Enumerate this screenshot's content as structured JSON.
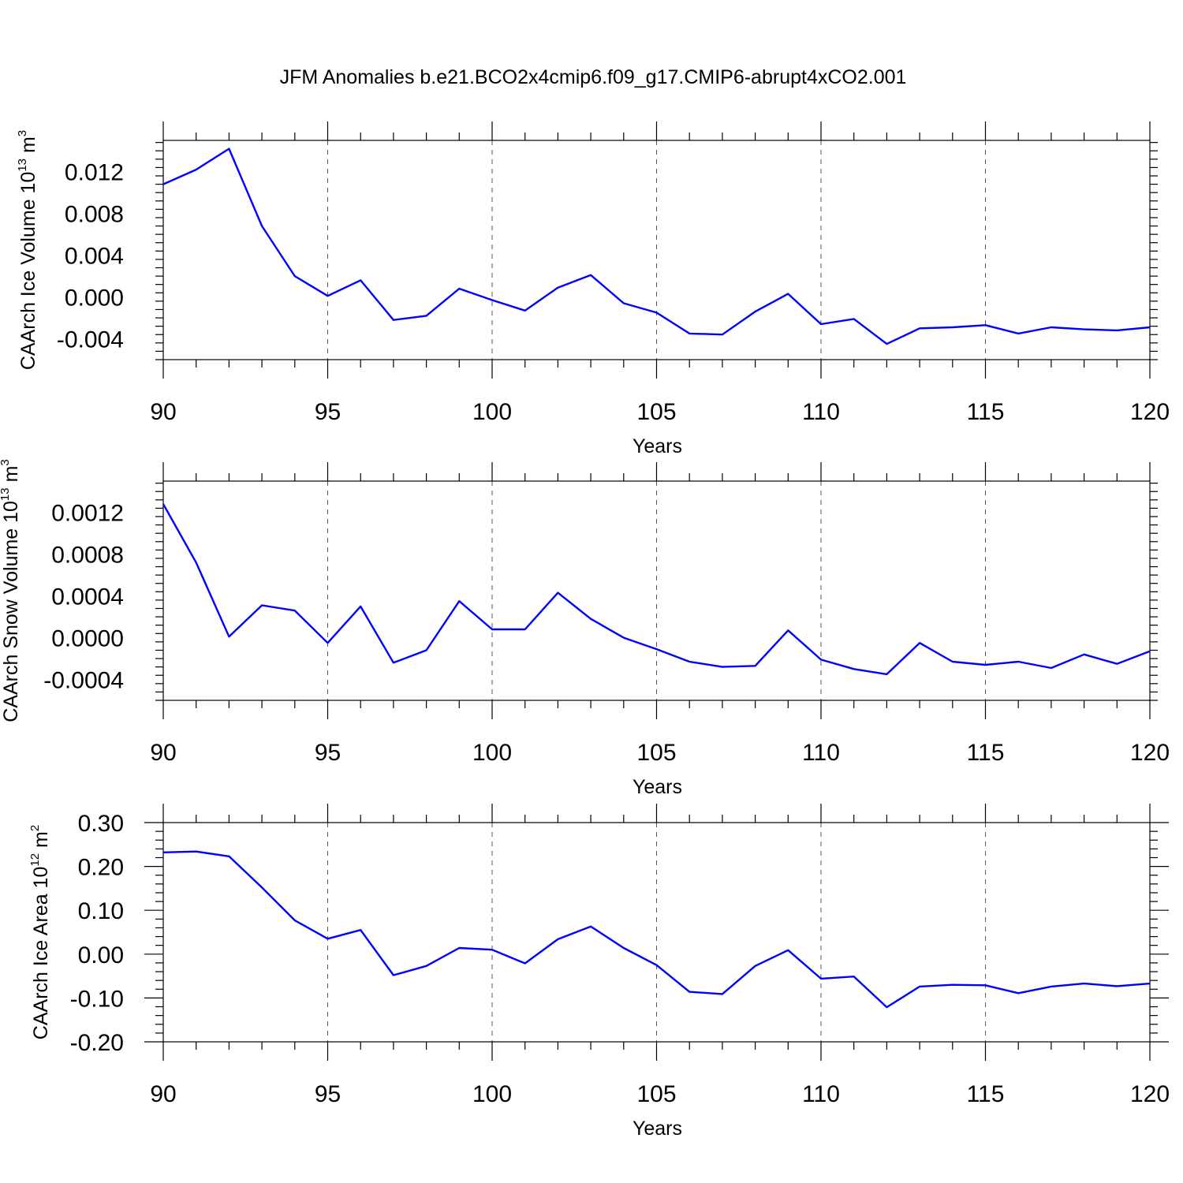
{
  "title": "JFM Anomalies b.e21.BCO2x4cmip6.f09_g17.CMIP6-abrupt4xCO2.001",
  "chart_data": [
    {
      "type": "line",
      "ylabel": "CAArch Ice Volume",
      "ylabel_unit_base": "10",
      "ylabel_unit_exp": "13",
      "ylabel_unit_suffix": "m",
      "ylabel_unit_suffix_exp": "3",
      "xlabel": "Years",
      "xlim": [
        90,
        120
      ],
      "ylim": [
        -0.006,
        0.015
      ],
      "yticks": [
        -0.004,
        0.0,
        0.004,
        0.008,
        0.012
      ],
      "ytick_labels": [
        "-0.004",
        "0.000",
        "0.004",
        "0.008",
        "0.012"
      ],
      "xticks": [
        90,
        95,
        100,
        105,
        110,
        115,
        120
      ],
      "xtick_labels": [
        "90",
        "95",
        "100",
        "105",
        "110",
        "115",
        "120"
      ],
      "grid": "vertical-dashed",
      "x": [
        90,
        91,
        92,
        93,
        94,
        95,
        96,
        97,
        98,
        99,
        100,
        101,
        102,
        103,
        104,
        105,
        106,
        107,
        108,
        109,
        110,
        111,
        112,
        113,
        114,
        115,
        116,
        117,
        118,
        119,
        120
      ],
      "values": [
        0.0108,
        0.0122,
        0.0142,
        0.0068,
        0.002,
        0.0001,
        0.0016,
        -0.0022,
        -0.0018,
        0.0008,
        -0.0003,
        -0.0013,
        0.0009,
        0.0021,
        -0.0006,
        -0.0015,
        -0.0035,
        -0.0036,
        -0.0014,
        0.0003,
        -0.0026,
        -0.0021,
        -0.0045,
        -0.003,
        -0.0029,
        -0.0027,
        -0.0035,
        -0.0029,
        -0.0031,
        -0.0032,
        -0.0029
      ]
    },
    {
      "type": "line",
      "ylabel": "CAArch Snow Volume",
      "ylabel_unit_base": "10",
      "ylabel_unit_exp": "13",
      "ylabel_unit_suffix": "m",
      "ylabel_unit_suffix_exp": "3",
      "xlabel": "Years",
      "xlim": [
        90,
        120
      ],
      "ylim": [
        -0.0006,
        0.0015
      ],
      "yticks": [
        -0.0004,
        0.0,
        0.0004,
        0.0008,
        0.0012
      ],
      "ytick_labels": [
        "-0.0004",
        "0.0000",
        "0.0004",
        "0.0008",
        "0.0012"
      ],
      "xticks": [
        90,
        95,
        100,
        105,
        110,
        115,
        120
      ],
      "xtick_labels": [
        "90",
        "95",
        "100",
        "105",
        "110",
        "115",
        "120"
      ],
      "grid": "vertical-dashed",
      "x": [
        90,
        91,
        92,
        93,
        94,
        95,
        96,
        97,
        98,
        99,
        100,
        101,
        102,
        103,
        104,
        105,
        106,
        107,
        108,
        109,
        110,
        111,
        112,
        113,
        114,
        115,
        116,
        117,
        118,
        119,
        120
      ],
      "values": [
        0.00128,
        0.00072,
        1e-05,
        0.00031,
        0.00026,
        -5e-05,
        0.0003,
        -0.00024,
        -0.00012,
        0.00035,
        8e-05,
        8e-05,
        0.00043,
        0.00018,
        0.0,
        -0.00011,
        -0.00023,
        -0.00028,
        -0.00027,
        7e-05,
        -0.00021,
        -0.0003,
        -0.00035,
        -5e-05,
        -0.00023,
        -0.00026,
        -0.00023,
        -0.00029,
        -0.00016,
        -0.00025,
        -0.00013
      ]
    },
    {
      "type": "line",
      "ylabel": "CAArch Ice Area",
      "ylabel_unit_base": "10",
      "ylabel_unit_exp": "12",
      "ylabel_unit_suffix": "m",
      "ylabel_unit_suffix_exp": "2",
      "xlabel": "Years",
      "xlim": [
        90,
        120
      ],
      "ylim": [
        -0.2,
        0.3
      ],
      "yticks": [
        -0.2,
        -0.1,
        0.0,
        0.1,
        0.2,
        0.3
      ],
      "ytick_labels": [
        "-0.20",
        "-0.10",
        "0.00",
        "0.10",
        "0.20",
        "0.30"
      ],
      "xticks": [
        90,
        95,
        100,
        105,
        110,
        115,
        120
      ],
      "xtick_labels": [
        "90",
        "95",
        "100",
        "105",
        "110",
        "115",
        "120"
      ],
      "grid": "vertical-dashed",
      "x": [
        90,
        91,
        92,
        93,
        94,
        95,
        96,
        97,
        98,
        99,
        100,
        101,
        102,
        103,
        104,
        105,
        106,
        107,
        108,
        109,
        110,
        111,
        112,
        113,
        114,
        115,
        116,
        117,
        118,
        119,
        120
      ],
      "values": [
        0.232,
        0.234,
        0.223,
        0.152,
        0.077,
        0.035,
        0.055,
        -0.048,
        -0.027,
        0.014,
        0.01,
        -0.021,
        0.034,
        0.063,
        0.014,
        -0.025,
        -0.086,
        -0.091,
        -0.027,
        0.009,
        -0.056,
        -0.051,
        -0.121,
        -0.074,
        -0.07,
        -0.071,
        -0.089,
        -0.074,
        -0.067,
        -0.073,
        -0.067
      ]
    }
  ]
}
